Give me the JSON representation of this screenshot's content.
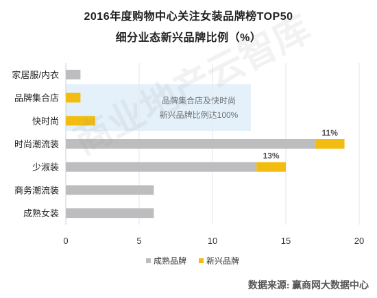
{
  "chart_data": {
    "type": "bar",
    "orientation": "horizontal",
    "stacked": true,
    "title": "2016年度购物中心关注女装品牌榜TOP50",
    "subtitle": "细分业态新兴品牌比例（%）",
    "categories": [
      "家居服/内衣",
      "品牌集合店",
      "快时尚",
      "时尚潮流装",
      "少淑装",
      "商务潮流装",
      "成熟女装"
    ],
    "series": [
      {
        "name": "成熟品牌",
        "values": [
          1,
          0,
          0,
          17,
          13,
          6,
          6
        ]
      },
      {
        "name": "新兴品牌",
        "values": [
          0,
          1,
          2,
          2,
          2,
          0,
          0
        ]
      }
    ],
    "data_labels": [
      "11%",
      "13%"
    ],
    "xlim": [
      0,
      20
    ],
    "xticks": [
      "0",
      "5",
      "10",
      "15",
      "20"
    ],
    "legend_position": "bottom",
    "annotation": {
      "line1": "品牌集合店及快时尚",
      "line2": "新兴品牌比例达100%"
    },
    "colors": {
      "成熟品牌": "#bdbcbf",
      "新兴品牌": "#f2bd10",
      "highlight_band": "#e5f1fa"
    }
  },
  "source": "数据来源:   赢商网大数据中心",
  "watermark": "商业地产云智库"
}
